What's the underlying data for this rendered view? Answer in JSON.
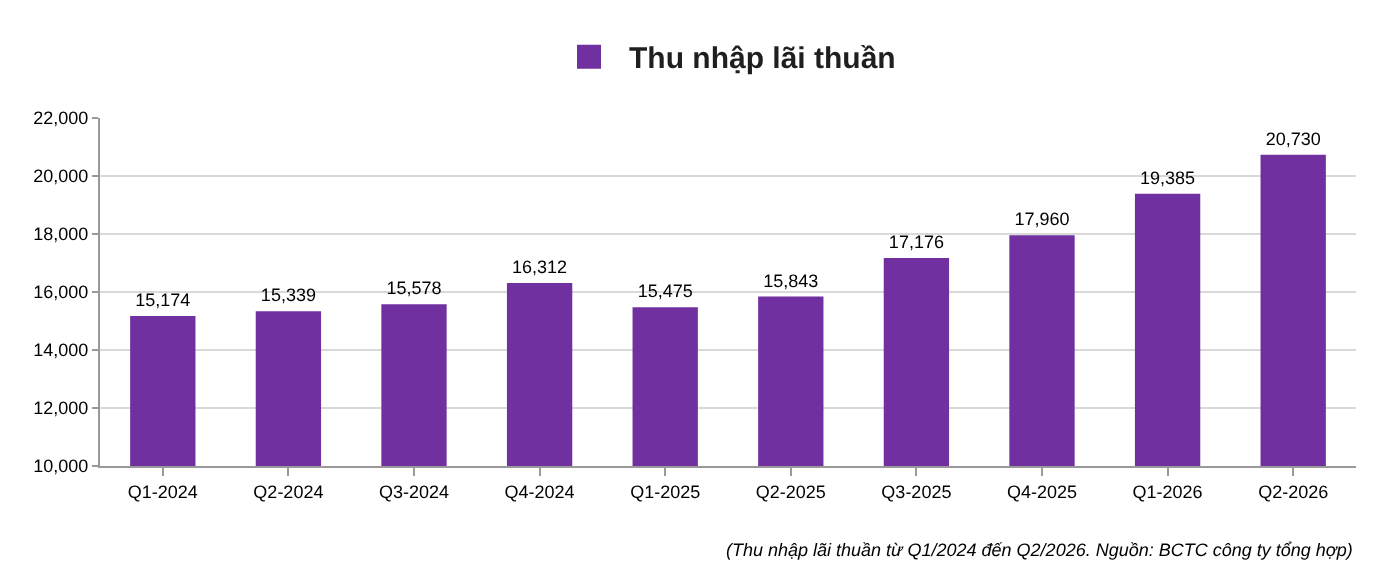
{
  "chart_data": {
    "type": "bar",
    "categories": [
      "Q1-2024",
      "Q2-2024",
      "Q3-2024",
      "Q4-2024",
      "Q1-2025",
      "Q2-2025",
      "Q3-2025",
      "Q4-2025",
      "Q1-2026",
      "Q2-2026"
    ],
    "series": [
      {
        "name": "Thu nhập lãi thuần",
        "color": "#7030a0",
        "values": [
          15174,
          15339,
          15578,
          16312,
          15475,
          15843,
          17176,
          17960,
          19385,
          20730
        ],
        "value_labels": [
          "15,174",
          "15,339",
          "15,578",
          "16,312",
          "15,475",
          "15,843",
          "17,176",
          "17,960",
          "19,385",
          "20,730"
        ]
      }
    ],
    "ylim": [
      10000,
      22000
    ],
    "yticks": [
      {
        "value": 10000,
        "label": "10,000"
      },
      {
        "value": 12000,
        "label": "12,000"
      },
      {
        "value": 14000,
        "label": "14,000"
      },
      {
        "value": 16000,
        "label": "16,000"
      },
      {
        "value": 18000,
        "label": "18,000"
      },
      {
        "value": 20000,
        "label": "20,000"
      },
      {
        "value": 22000,
        "label": "22,000"
      }
    ],
    "grid": "y",
    "legend": "top",
    "annotations": [
      "(Thu nhập lãi thuần từ Q1/2024 đến Q2/2026. Nguồn: BCTC công ty tổng hợp)"
    ]
  }
}
